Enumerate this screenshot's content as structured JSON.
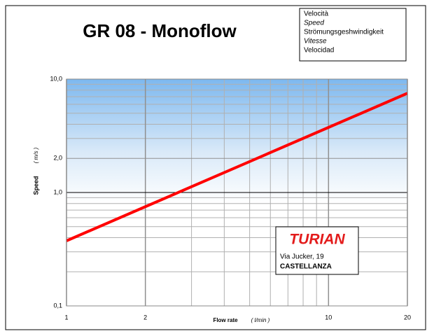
{
  "chart_data": {
    "type": "line",
    "title": "GR 08 - Monoflow",
    "y_label": "Speed",
    "y_unit": "( m/s )",
    "x_label": "Flow rate",
    "x_unit": "( l/min )",
    "legend_lines": [
      "Velocità",
      "Speed",
      "Strömungsgeshwindigkeit",
      "Vitesse",
      "Velocidad"
    ],
    "brand": {
      "name": "TURIAN",
      "address": "Via Jucker, 19",
      "city": "CASTELLANZA"
    },
    "x": [
      1,
      2,
      5,
      10,
      20
    ],
    "series": [
      {
        "name": "Speed",
        "color": "#ff0000",
        "values": [
          0.375,
          0.75,
          1.875,
          3.75,
          7.5
        ]
      }
    ],
    "xlim": [
      1,
      20
    ],
    "ylim": [
      0.1,
      10
    ],
    "log_x": true,
    "log_y": true,
    "xticks": [
      1,
      2,
      10,
      20
    ],
    "yticks": [
      {
        "value": 0.1,
        "label": "0,1"
      },
      {
        "value": 1,
        "label": "1,0"
      },
      {
        "value": 2,
        "label": "2,0"
      },
      {
        "value": 10,
        "label": "10,0"
      }
    ],
    "xgrid": [
      3,
      4,
      5,
      6,
      7,
      8,
      9
    ],
    "ygrid": [
      0.2,
      0.3,
      0.4,
      0.5,
      0.6,
      0.7,
      0.8,
      0.9,
      3,
      4,
      5,
      6,
      7,
      8,
      9
    ],
    "grid": true
  }
}
